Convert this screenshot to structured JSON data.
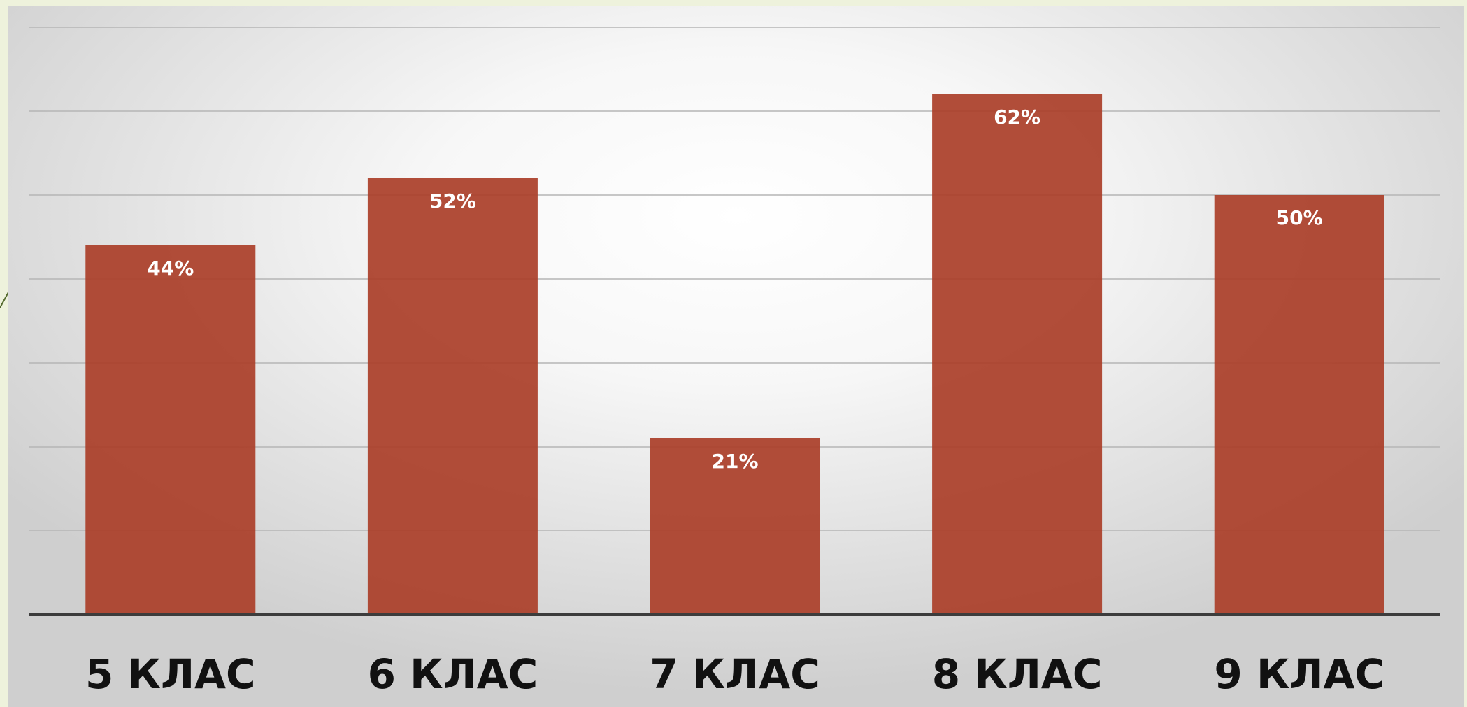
{
  "chart_data": {
    "type": "bar",
    "categories": [
      "5 КЛАС",
      "6 КЛАС",
      "7 КЛАС",
      "8 КЛАС",
      "9 КЛАС"
    ],
    "values": [
      44,
      52,
      21,
      62,
      50
    ],
    "value_labels": [
      "44%",
      "52%",
      "21%",
      "62%",
      "50%"
    ],
    "ylim": [
      0,
      70
    ],
    "grid": true,
    "legend": "none",
    "title": "",
    "xlabel": "",
    "ylabel": ""
  },
  "colors": {
    "bar": "#ab3f2a",
    "gridline": "#b5b5b5",
    "axis": "#3c3c3c",
    "page_background": "#eef2dc"
  }
}
